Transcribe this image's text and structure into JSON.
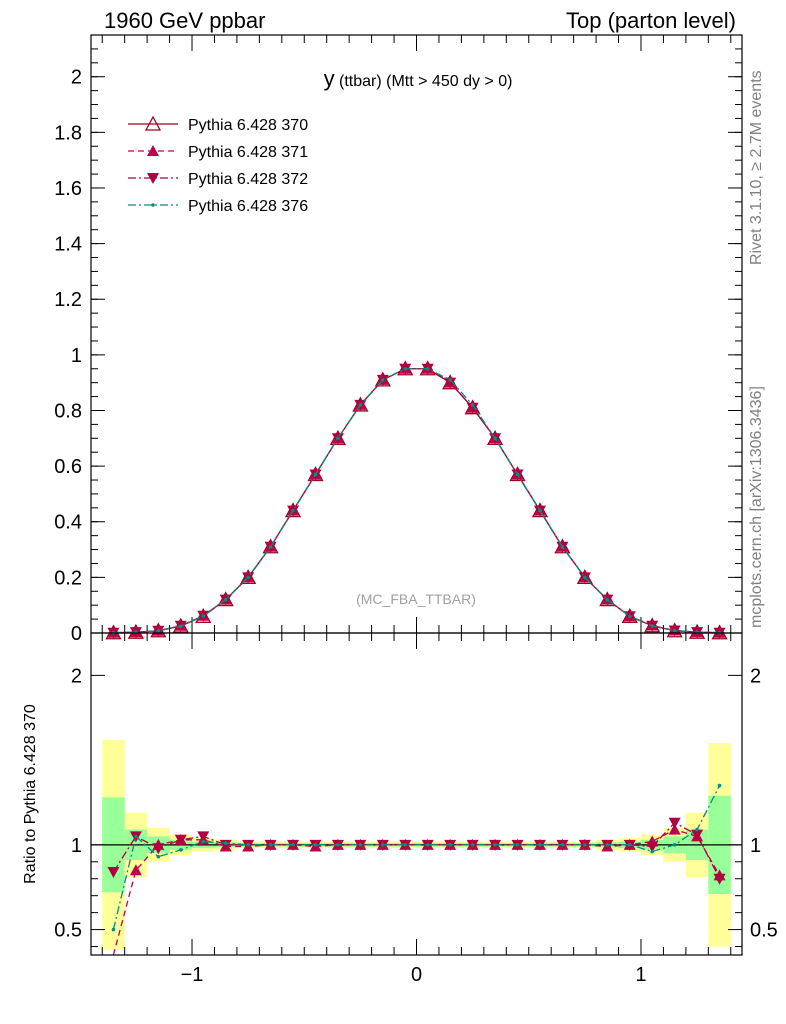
{
  "header": {
    "left": "1960 GeV ppbar",
    "right": "Top (parton level)"
  },
  "plot_title_main": "y",
  "plot_title_sub": " (ttbar) (Mtt > 450 dy > 0)",
  "analysis_label": "(MC_FBA_TTBAR)",
  "side_labels": {
    "rivet": "Rivet 3.1.10, ≥ 2.7M events",
    "mcplots": "mcplots.cern.ch [arXiv:1306.3436]"
  },
  "colors": {
    "s370": "#a0001e",
    "s371": "#c0004a",
    "s372": "#b00040",
    "s376": "#009080",
    "green_band": "#99ff99",
    "yellow_band": "#ffff99"
  },
  "chart_data": [
    {
      "type": "line",
      "panel": "main",
      "x": [
        -1.35,
        -1.25,
        -1.15,
        -1.05,
        -0.95,
        -0.85,
        -0.75,
        -0.65,
        -0.55,
        -0.45,
        -0.35,
        -0.25,
        -0.15,
        -0.05,
        0.05,
        0.15,
        0.25,
        0.35,
        0.45,
        0.55,
        0.65,
        0.75,
        0.85,
        0.95,
        1.05,
        1.15,
        1.25,
        1.35
      ],
      "xlim": [
        -1.45,
        1.45
      ],
      "ylim": [
        0,
        2.15
      ],
      "yticks": [
        "0",
        "0.2",
        "0.4",
        "0.6",
        "0.8",
        "1",
        "1.2",
        "1.4",
        "1.6",
        "1.8",
        "2"
      ],
      "series": [
        {
          "name": "Pythia 6.428 370",
          "style": "solid",
          "marker": "triangle-open",
          "values": [
            0.001,
            0.003,
            0.008,
            0.025,
            0.06,
            0.12,
            0.2,
            0.31,
            0.44,
            0.57,
            0.7,
            0.82,
            0.91,
            0.95,
            0.95,
            0.9,
            0.81,
            0.7,
            0.57,
            0.44,
            0.31,
            0.2,
            0.12,
            0.06,
            0.026,
            0.008,
            0.003,
            0.001
          ]
        },
        {
          "name": "Pythia 6.428 371",
          "style": "dashed",
          "marker": "triangle-up",
          "values": [
            0.001,
            0.003,
            0.008,
            0.026,
            0.062,
            0.12,
            0.2,
            0.31,
            0.44,
            0.57,
            0.7,
            0.82,
            0.91,
            0.95,
            0.95,
            0.9,
            0.81,
            0.7,
            0.57,
            0.44,
            0.31,
            0.2,
            0.12,
            0.06,
            0.027,
            0.009,
            0.003,
            0.001
          ]
        },
        {
          "name": "Pythia 6.428 372",
          "style": "dashdot",
          "marker": "triangle-down",
          "values": [
            0.001,
            0.003,
            0.008,
            0.026,
            0.062,
            0.12,
            0.2,
            0.31,
            0.44,
            0.57,
            0.7,
            0.82,
            0.91,
            0.95,
            0.95,
            0.9,
            0.81,
            0.7,
            0.57,
            0.44,
            0.31,
            0.2,
            0.12,
            0.06,
            0.026,
            0.009,
            0.003,
            0.001
          ]
        },
        {
          "name": "Pythia 6.428 376",
          "style": "dashdot",
          "marker": "dot",
          "values": [
            0.001,
            0.003,
            0.008,
            0.024,
            0.061,
            0.12,
            0.2,
            0.31,
            0.44,
            0.57,
            0.7,
            0.82,
            0.91,
            0.95,
            0.95,
            0.91,
            0.82,
            0.7,
            0.57,
            0.44,
            0.31,
            0.2,
            0.12,
            0.06,
            0.025,
            0.009,
            0.003,
            0.001
          ]
        }
      ]
    },
    {
      "type": "line",
      "panel": "ratio",
      "ylabel": "Ratio to Pythia 6.428 370",
      "xlim": [
        -1.45,
        1.45
      ],
      "ylim": [
        0.35,
        2.25
      ],
      "xticks": [
        "−1",
        "0",
        "1"
      ],
      "yticks": [
        "0.5",
        "1",
        "2"
      ],
      "x": [
        -1.35,
        -1.25,
        -1.15,
        -1.05,
        -0.95,
        -0.85,
        -0.75,
        -0.65,
        -0.55,
        -0.45,
        -0.35,
        -0.25,
        -0.15,
        -0.05,
        0.05,
        0.15,
        0.25,
        0.35,
        0.45,
        0.55,
        0.65,
        0.75,
        0.85,
        0.95,
        1.05,
        1.15,
        1.25,
        1.35
      ],
      "band_green": [
        0.28,
        0.09,
        0.05,
        0.03,
        0.02,
        0.015,
        0.01,
        0.01,
        0.01,
        0.01,
        0.01,
        0.01,
        0.01,
        0.01,
        0.01,
        0.01,
        0.01,
        0.01,
        0.01,
        0.01,
        0.01,
        0.01,
        0.015,
        0.02,
        0.03,
        0.05,
        0.09,
        0.29
      ],
      "band_yellow": [
        0.62,
        0.19,
        0.1,
        0.06,
        0.04,
        0.03,
        0.02,
        0.02,
        0.02,
        0.02,
        0.02,
        0.02,
        0.02,
        0.02,
        0.02,
        0.02,
        0.02,
        0.02,
        0.02,
        0.02,
        0.02,
        0.02,
        0.03,
        0.04,
        0.06,
        0.1,
        0.19,
        0.6
      ],
      "series": [
        {
          "name": "Pythia 6.428 371",
          "values": [
            0.3,
            0.85,
            1.0,
            1.03,
            1.03,
            0.99,
            0.99,
            1.0,
            1.0,
            0.99,
            1.0,
            1.0,
            1.0,
            1.0,
            1.0,
            1.0,
            1.0,
            1.0,
            1.0,
            1.0,
            1.0,
            1.0,
            0.99,
            1.0,
            1.02,
            1.09,
            1.05,
            0.82
          ]
        },
        {
          "name": "Pythia 6.428 372",
          "values": [
            0.84,
            1.05,
            0.98,
            1.03,
            1.05,
            1.0,
            1.0,
            1.0,
            1.0,
            1.0,
            1.0,
            1.0,
            1.0,
            1.0,
            1.0,
            1.0,
            1.0,
            1.0,
            1.0,
            1.0,
            1.0,
            1.0,
            1.0,
            1.0,
            0.99,
            1.13,
            1.06,
            0.8
          ]
        },
        {
          "name": "Pythia 6.428 376",
          "values": [
            0.5,
            1.05,
            0.93,
            0.97,
            1.02,
            1.01,
            1.0,
            1.0,
            1.0,
            1.0,
            1.0,
            1.0,
            1.0,
            1.0,
            1.0,
            1.0,
            1.0,
            1.0,
            1.0,
            1.0,
            1.0,
            1.0,
            1.0,
            1.0,
            0.96,
            1.0,
            1.09,
            1.35
          ]
        }
      ]
    }
  ]
}
